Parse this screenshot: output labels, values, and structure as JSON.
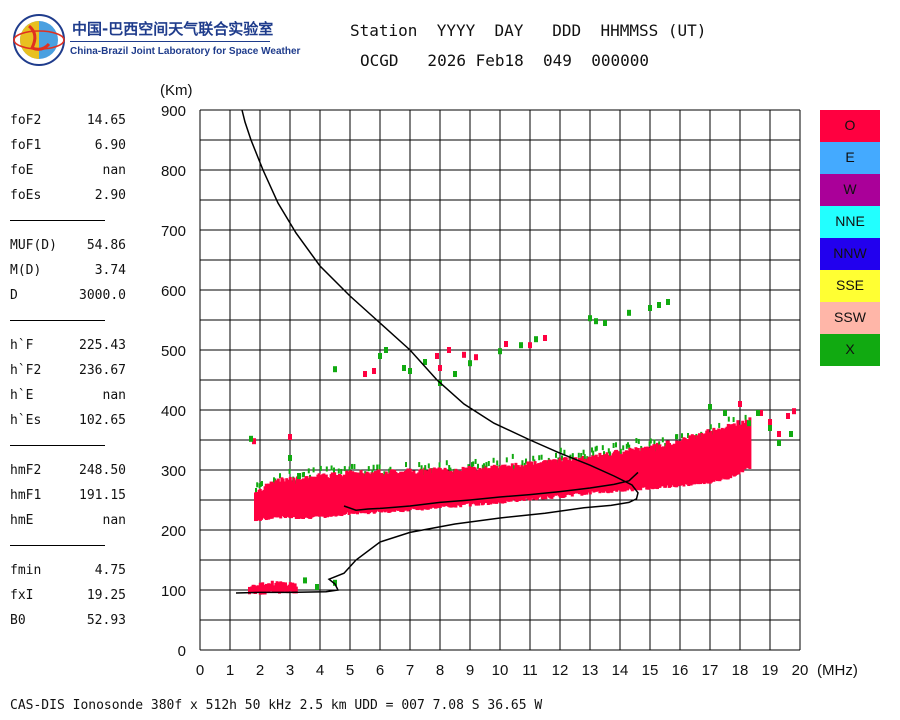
{
  "logo": {
    "cn": "中国-巴西空间天气联合实验室",
    "en": "China-Brazil Joint Laboratory for Space Weather"
  },
  "header": {
    "line1": "Station  YYYY  DAY   DDD  HHMMSS (UT)",
    "line2": "OCGD   2026 Feb18  049  000000"
  },
  "params": [
    {
      "name": "foF2",
      "value": "14.65"
    },
    {
      "name": "foF1",
      "value": "6.90"
    },
    {
      "name": "foE",
      "value": "nan"
    },
    {
      "name": "foEs",
      "value": "2.90"
    },
    {
      "sep": true
    },
    {
      "name": "MUF(D)",
      "value": "54.86"
    },
    {
      "name": "M(D)",
      "value": "3.74"
    },
    {
      "name": "D",
      "value": "3000.0"
    },
    {
      "sep": true
    },
    {
      "name": "h`F",
      "value": "225.43"
    },
    {
      "name": "h`F2",
      "value": "236.67"
    },
    {
      "name": "h`E",
      "value": "nan"
    },
    {
      "name": "h`Es",
      "value": "102.65"
    },
    {
      "sep": true
    },
    {
      "name": "hmF2",
      "value": "248.50"
    },
    {
      "name": "hmF1",
      "value": "191.15"
    },
    {
      "name": "hmE",
      "value": "nan"
    },
    {
      "sep": true
    },
    {
      "name": "fmin",
      "value": "4.75"
    },
    {
      "name": "fxI",
      "value": "19.25"
    },
    {
      "name": "B0",
      "value": "52.93"
    }
  ],
  "legend": [
    {
      "label": "O",
      "color": "#ff0040"
    },
    {
      "label": "E",
      "color": "#44aaff"
    },
    {
      "label": "W",
      "color": "#aa0099"
    },
    {
      "label": "NNE",
      "color": "#22ffff"
    },
    {
      "label": "NNW",
      "color": "#2200ee"
    },
    {
      "label": "SSE",
      "color": "#ffff33"
    },
    {
      "label": "SSW",
      "color": "#ffb6a8"
    },
    {
      "label": "X",
      "color": "#11aa11"
    }
  ],
  "footer": "CAS-DIS Ionosonde 380f x 512h 50 kHz 2.5 km UDD = 007 7.08 S 36.65 W",
  "chart_data": {
    "type": "scatter",
    "title": "",
    "xlabel": "(MHz)",
    "ylabel": "(Km)",
    "xlim": [
      0,
      20
    ],
    "ylim": [
      0,
      900
    ],
    "x_ticks": [
      0,
      1,
      2,
      3,
      4,
      5,
      6,
      7,
      8,
      9,
      10,
      11,
      12,
      13,
      14,
      15,
      16,
      17,
      18,
      19,
      20
    ],
    "y_ticks": [
      0,
      100,
      200,
      300,
      400,
      500,
      600,
      700,
      800,
      900
    ],
    "grid": true,
    "colors": {
      "O": "#ff0040",
      "X": "#11aa11",
      "profile": "#000000"
    },
    "series": [
      {
        "name": "O-mode F trace (lower edge, upper edge)",
        "mode": "O",
        "band": [
          [
            1.8,
            215,
            262
          ],
          [
            2.5,
            222,
            282
          ],
          [
            3,
            220,
            285
          ],
          [
            4,
            222,
            290
          ],
          [
            5,
            228,
            295
          ],
          [
            6,
            230,
            297
          ],
          [
            7,
            234,
            298
          ],
          [
            8,
            238,
            300
          ],
          [
            9,
            242,
            302
          ],
          [
            10,
            246,
            305
          ],
          [
            11,
            252,
            310
          ],
          [
            12,
            256,
            316
          ],
          [
            13,
            262,
            322
          ],
          [
            14,
            266,
            330
          ],
          [
            15,
            270,
            338
          ],
          [
            16,
            275,
            350
          ],
          [
            17,
            280,
            365
          ],
          [
            17.5,
            285,
            372
          ],
          [
            18.3,
            305,
            385
          ]
        ]
      },
      {
        "name": "O-mode Es trace",
        "mode": "O",
        "band": [
          [
            1.6,
            95,
            108
          ],
          [
            2,
            95,
            110
          ],
          [
            2.5,
            96,
            111
          ],
          [
            3,
            97,
            110
          ],
          [
            3.2,
            97,
            107
          ]
        ]
      },
      {
        "name": "O-mode scattered echoes",
        "mode": "O",
        "points": [
          [
            1.8,
            348
          ],
          [
            3.0,
            355
          ],
          [
            5.5,
            460
          ],
          [
            5.8,
            465
          ],
          [
            7.5,
            480
          ],
          [
            7.9,
            490
          ],
          [
            8.0,
            470
          ],
          [
            8.3,
            500
          ],
          [
            8.8,
            492
          ],
          [
            9.2,
            488
          ],
          [
            10.2,
            510
          ],
          [
            11.0,
            508
          ],
          [
            11.5,
            520
          ],
          [
            18.0,
            410
          ],
          [
            18.7,
            395
          ],
          [
            19.0,
            380
          ],
          [
            19.3,
            360
          ],
          [
            19.6,
            390
          ],
          [
            19.8,
            398
          ]
        ]
      },
      {
        "name": "X-mode scattered echoes",
        "mode": "X",
        "points": [
          [
            1.7,
            352
          ],
          [
            3.0,
            320
          ],
          [
            3.3,
            290
          ],
          [
            3.5,
            116
          ],
          [
            3.9,
            105
          ],
          [
            4.5,
            112
          ],
          [
            4.5,
            468
          ],
          [
            6.0,
            490
          ],
          [
            6.2,
            500
          ],
          [
            6.8,
            470
          ],
          [
            7.0,
            465
          ],
          [
            7.5,
            480
          ],
          [
            8.0,
            445
          ],
          [
            8.5,
            460
          ],
          [
            9.0,
            478
          ],
          [
            10.0,
            498
          ],
          [
            10.7,
            508
          ],
          [
            11.2,
            518
          ],
          [
            13.0,
            553
          ],
          [
            13.2,
            548
          ],
          [
            13.5,
            545
          ],
          [
            14.3,
            562
          ],
          [
            15.0,
            570
          ],
          [
            15.3,
            575
          ],
          [
            15.6,
            580
          ],
          [
            17.0,
            405
          ],
          [
            17.5,
            395
          ],
          [
            18.3,
            378
          ],
          [
            18.6,
            395
          ],
          [
            19.0,
            370
          ],
          [
            19.3,
            345
          ],
          [
            19.7,
            360
          ]
        ]
      },
      {
        "name": "Electron density profile",
        "mode": "profile",
        "points": [
          [
            1.2,
            95
          ],
          [
            2.0,
            96
          ],
          [
            3.0,
            96
          ],
          [
            4.2,
            97
          ],
          [
            4.6,
            100
          ],
          [
            4.5,
            110
          ],
          [
            4.3,
            118
          ],
          [
            4.8,
            128
          ],
          [
            5.2,
            150
          ],
          [
            6.0,
            180
          ],
          [
            7.0,
            196
          ],
          [
            8.5,
            210
          ],
          [
            10,
            220
          ],
          [
            11.5,
            228
          ],
          [
            12.8,
            237
          ],
          [
            13.7,
            241
          ],
          [
            14.3,
            246
          ],
          [
            14.55,
            252
          ],
          [
            14.6,
            262
          ],
          [
            14.4,
            275
          ],
          [
            13.8,
            290
          ],
          [
            13.0,
            308
          ],
          [
            12.0,
            328
          ],
          [
            11.0,
            350
          ],
          [
            9.8,
            378
          ],
          [
            8.8,
            410
          ],
          [
            7.9,
            450
          ],
          [
            7.0,
            500
          ],
          [
            6.0,
            545
          ],
          [
            5.0,
            590
          ],
          [
            4.0,
            640
          ],
          [
            3.2,
            695
          ],
          [
            2.6,
            745
          ],
          [
            2.1,
            800
          ],
          [
            1.7,
            850
          ],
          [
            1.5,
            880
          ],
          [
            1.4,
            900
          ]
        ]
      },
      {
        "name": "Virtual height trace (model)",
        "mode": "profile",
        "points": [
          [
            4.8,
            240
          ],
          [
            5.2,
            233
          ],
          [
            5.6,
            235
          ],
          [
            6.0,
            236
          ],
          [
            6.5,
            238
          ],
          [
            7.0,
            240
          ],
          [
            8.0,
            246
          ],
          [
            9.0,
            250
          ],
          [
            10.0,
            255
          ],
          [
            11.0,
            259
          ],
          [
            12.0,
            264
          ],
          [
            13.0,
            270
          ],
          [
            13.8,
            276
          ],
          [
            14.3,
            282
          ],
          [
            14.6,
            296
          ]
        ]
      }
    ]
  }
}
